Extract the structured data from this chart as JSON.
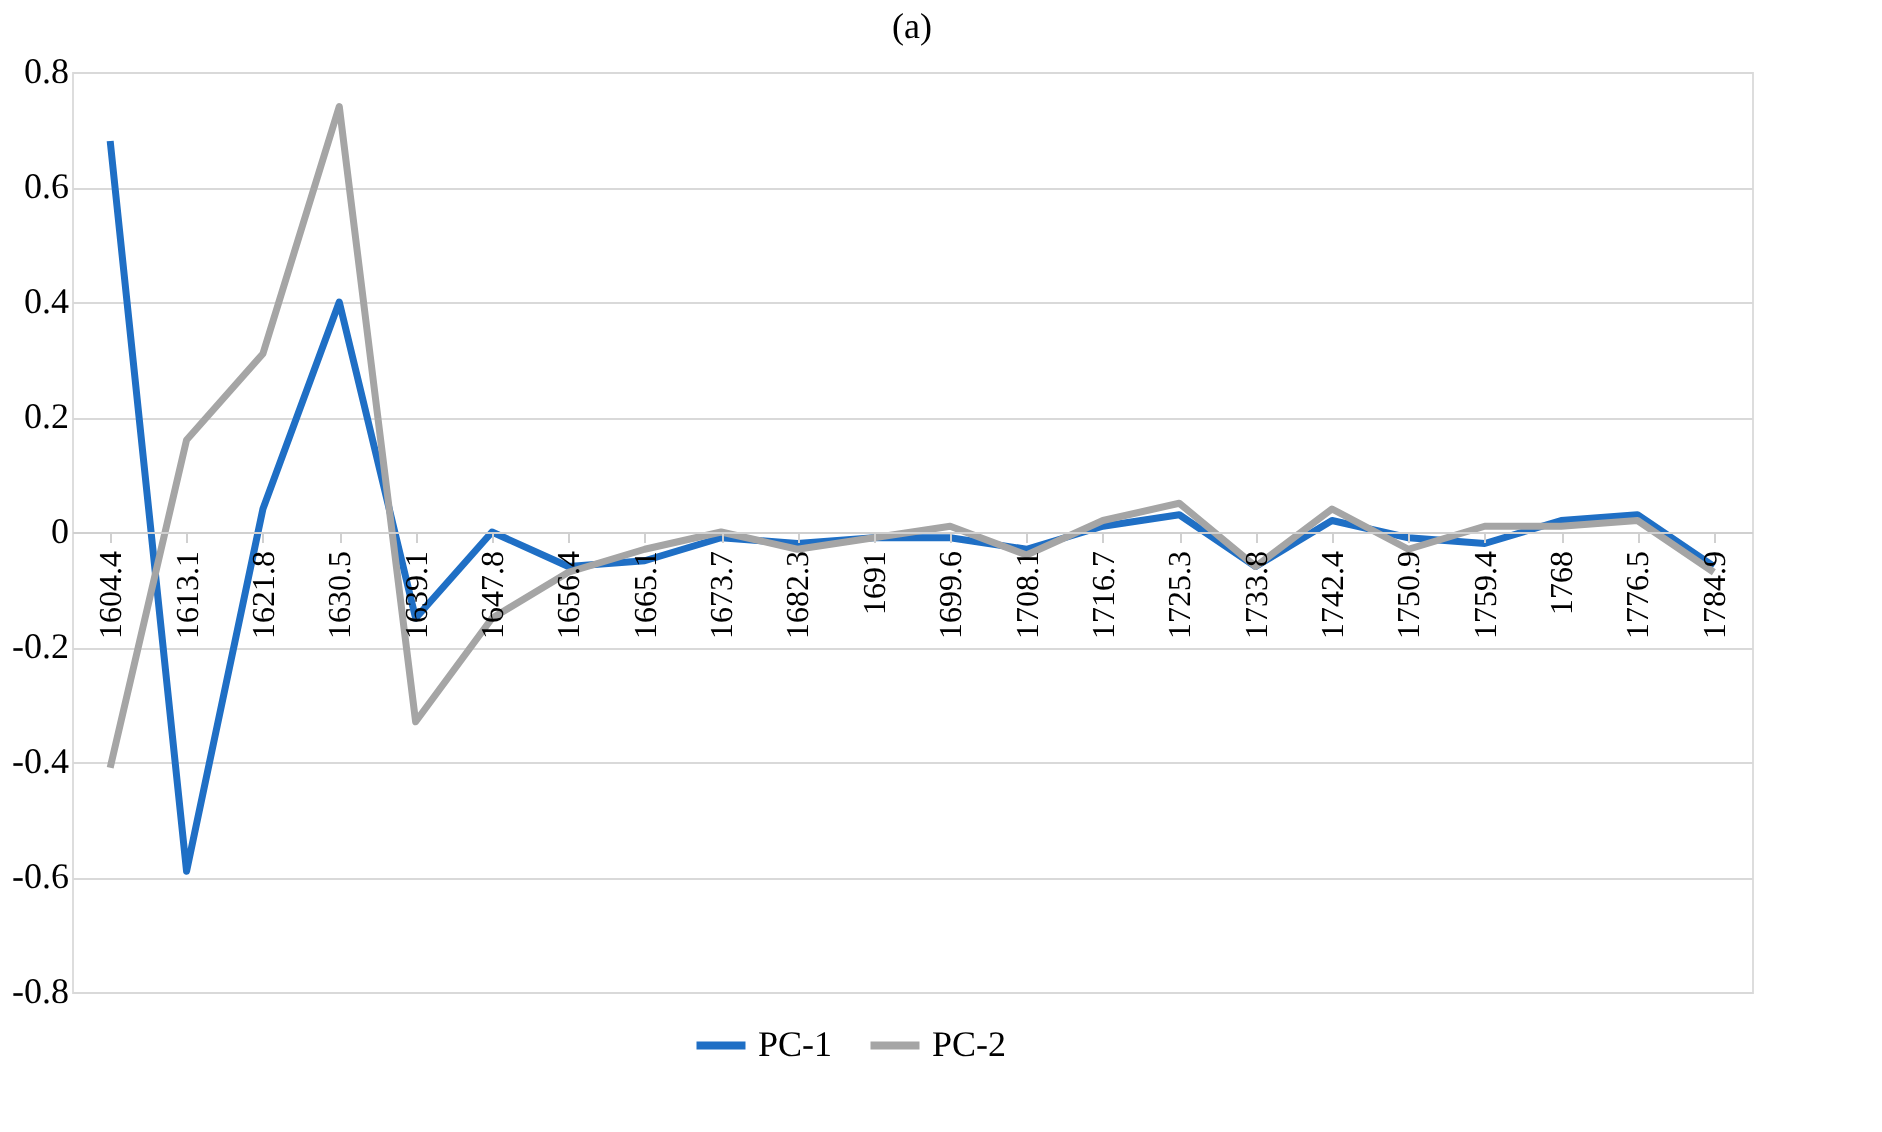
{
  "chart_data": {
    "type": "line",
    "title": "(a)",
    "categories": [
      "1604.4",
      "1613.1",
      "1621.8",
      "1630.5",
      "1639.1",
      "1647.8",
      "1656.4",
      "1665.1",
      "1673.7",
      "1682.3",
      "1691",
      "1699.6",
      "1708.1",
      "1716.7",
      "1725.3",
      "1733.8",
      "1742.4",
      "1750.9",
      "1759.4",
      "1768",
      "1776.5",
      "1784.9"
    ],
    "series": [
      {
        "name": "PC-1",
        "color": "#1f6fc5",
        "values": [
          0.68,
          -0.59,
          0.04,
          0.4,
          -0.15,
          0.0,
          -0.06,
          -0.05,
          -0.01,
          -0.02,
          -0.01,
          -0.01,
          -0.03,
          0.01,
          0.03,
          -0.06,
          0.02,
          -0.01,
          -0.02,
          0.02,
          0.03,
          -0.06
        ]
      },
      {
        "name": "PC-2",
        "color": "#a5a5a5",
        "values": [
          -0.41,
          0.16,
          0.31,
          0.74,
          -0.33,
          -0.15,
          -0.07,
          -0.03,
          0.0,
          -0.03,
          -0.01,
          0.01,
          -0.04,
          0.02,
          0.05,
          -0.06,
          0.04,
          -0.03,
          0.01,
          0.01,
          0.02,
          -0.07
        ]
      }
    ],
    "ylim": [
      -0.8,
      0.8
    ],
    "yticks": [
      -0.8,
      -0.6,
      -0.4,
      -0.2,
      0,
      0.2,
      0.4,
      0.6,
      0.8
    ],
    "grid": "y",
    "legend": "bottom",
    "marker": "none",
    "line_style": "solid"
  }
}
